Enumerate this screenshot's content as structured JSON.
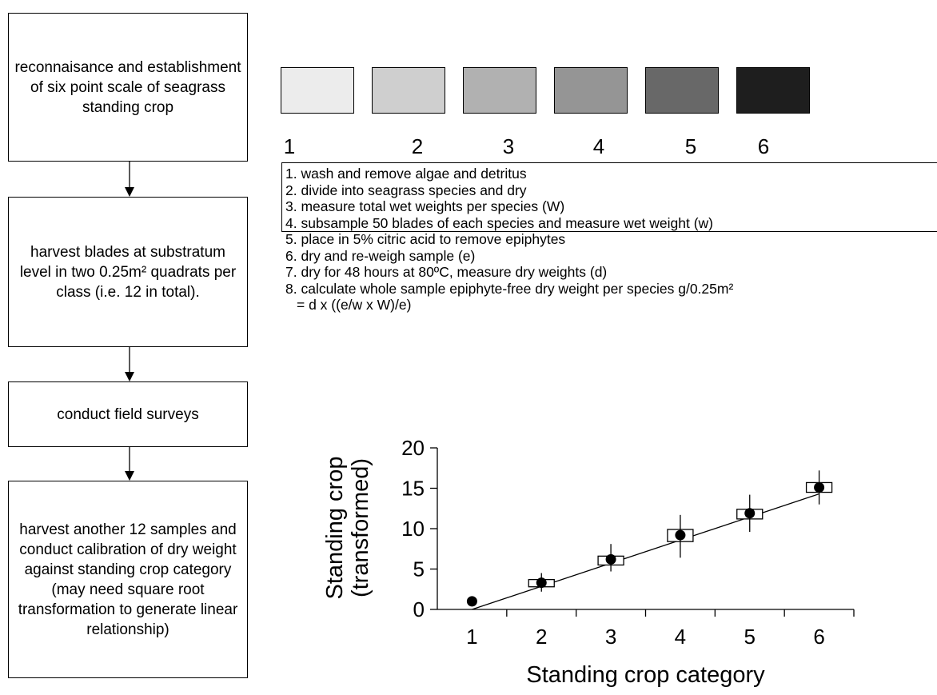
{
  "flowchart": {
    "steps": [
      "reconnaisance and establishment of six point scale of seagrass standing crop",
      "harvest blades at substratum level in two 0.25m² quadrats per class (i.e. 12 in total).",
      "conduct field surveys",
      "harvest another 12 samples and conduct calibration of dry weight against standing crop category (may need square root transformation to generate linear relationship)"
    ]
  },
  "scale": {
    "swatches": [
      {
        "label": "1",
        "color": "#ececec"
      },
      {
        "label": "2",
        "color": "#cfcfcf"
      },
      {
        "label": "3",
        "color": "#b1b1b1"
      },
      {
        "label": "4",
        "color": "#959595"
      },
      {
        "label": "5",
        "color": "#686868"
      },
      {
        "label": "6",
        "color": "#1e1e1e"
      }
    ]
  },
  "procedure": {
    "lines": [
      "1. wash and remove algae and detritus",
      "2. divide into seagrass species and dry",
      "3. measure total wet weights per species (W)",
      "4. subsample 50 blades of each species and measure wet weight (w)",
      "5. place in 5% citric acid to remove epiphytes",
      "6. dry and re-weigh sample (e)",
      "7. dry for 48 hours at 80ºC, measure dry weights (d)",
      "8. calculate whole sample epiphyte-free dry weight per species g/0.25m²",
      "= d x ((e/w x W)/e)"
    ]
  },
  "chart_data": {
    "type": "scatter",
    "xlabel": "Standing crop category",
    "ylabel": [
      "Standing crop",
      "(transformed)"
    ],
    "x_ticks": [
      "1",
      "2",
      "3",
      "4",
      "5",
      "6"
    ],
    "y_ticks": [
      "0",
      "5",
      "10",
      "15",
      "20"
    ],
    "xlim": [
      0.5,
      6.5
    ],
    "ylim": [
      0,
      20
    ],
    "points": [
      {
        "x": 1,
        "y": 1.0,
        "box": null,
        "whisker": null
      },
      {
        "x": 2,
        "y": 3.3,
        "box": [
          2.8,
          3.7
        ],
        "whisker": [
          2.2,
          4.5
        ]
      },
      {
        "x": 3,
        "y": 6.2,
        "box": [
          5.5,
          6.6
        ],
        "whisker": [
          4.7,
          8.1
        ]
      },
      {
        "x": 4,
        "y": 9.2,
        "box": [
          8.4,
          9.9
        ],
        "whisker": [
          6.4,
          11.7
        ]
      },
      {
        "x": 5,
        "y": 11.9,
        "box": [
          11.2,
          12.4
        ],
        "whisker": [
          9.6,
          14.2
        ]
      },
      {
        "x": 6,
        "y": 15.1,
        "box": [
          14.5,
          15.7
        ],
        "whisker": [
          13.0,
          17.2
        ]
      }
    ],
    "fit_line": {
      "x": [
        1,
        6
      ],
      "y": [
        0,
        14.3
      ]
    }
  }
}
